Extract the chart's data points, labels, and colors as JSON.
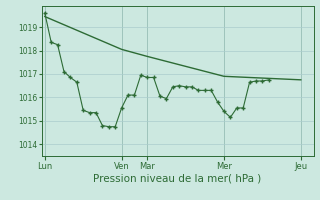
{
  "background_color": "#cce8e0",
  "grid_color": "#aacccc",
  "line_color": "#2d6b35",
  "marker_color": "#2d6b35",
  "ylim": [
    1013.5,
    1019.9
  ],
  "yticks": [
    1014,
    1015,
    1016,
    1017,
    1018,
    1019
  ],
  "xlabel": "Pression niveau de la mer( hPa )",
  "xlabel_fontsize": 7.5,
  "xtick_labels": [
    "Lun",
    "Ven",
    "Mar",
    "Mer",
    "Jeu"
  ],
  "xtick_positions": [
    0,
    12,
    16,
    28,
    40
  ],
  "xlim": [
    -0.5,
    42
  ],
  "smooth_line": [
    [
      0,
      1019.45
    ],
    [
      12,
      1018.05
    ],
    [
      16,
      1017.75
    ],
    [
      28,
      1016.9
    ],
    [
      40,
      1016.75
    ]
  ],
  "jagged_line": [
    [
      0,
      1019.6
    ],
    [
      1,
      1018.35
    ],
    [
      2,
      1018.25
    ],
    [
      3,
      1017.1
    ],
    [
      4,
      1016.85
    ],
    [
      5,
      1016.65
    ],
    [
      6,
      1015.45
    ],
    [
      7,
      1015.35
    ],
    [
      8,
      1015.35
    ],
    [
      9,
      1014.8
    ],
    [
      10,
      1014.75
    ],
    [
      11,
      1014.75
    ],
    [
      12,
      1015.55
    ],
    [
      13,
      1016.1
    ],
    [
      14,
      1016.1
    ],
    [
      15,
      1016.95
    ],
    [
      16,
      1016.85
    ],
    [
      17,
      1016.85
    ],
    [
      18,
      1016.05
    ],
    [
      19,
      1015.95
    ],
    [
      20,
      1016.45
    ],
    [
      21,
      1016.5
    ],
    [
      22,
      1016.45
    ],
    [
      23,
      1016.45
    ],
    [
      24,
      1016.3
    ],
    [
      25,
      1016.3
    ],
    [
      26,
      1016.3
    ],
    [
      27,
      1015.8
    ],
    [
      28,
      1015.4
    ],
    [
      29,
      1015.15
    ],
    [
      30,
      1015.55
    ],
    [
      31,
      1015.55
    ],
    [
      32,
      1016.65
    ],
    [
      33,
      1016.7
    ],
    [
      34,
      1016.7
    ],
    [
      35,
      1016.75
    ]
  ]
}
